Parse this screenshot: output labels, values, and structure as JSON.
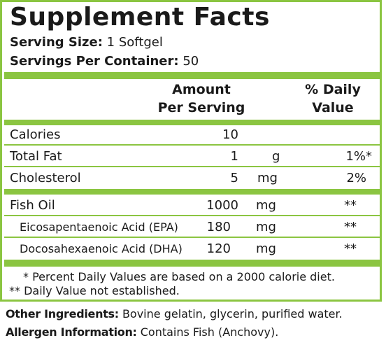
{
  "label": {
    "title": "Supplement Facts",
    "serving_size": {
      "label": "Serving Size:",
      "value": "1 Softgel"
    },
    "servings_per_container": {
      "label": "Servings Per Container:",
      "value": "50"
    },
    "header": {
      "amount_line1": "Amount",
      "amount_line2": "Per Serving",
      "daily_line1": "% Daily",
      "daily_line2": "Value"
    },
    "rows": [
      {
        "name": "Calories",
        "amount": "10",
        "unit": "",
        "dv": ""
      },
      {
        "name": "Total Fat",
        "amount": "1",
        "unit": "g",
        "dv": "1%*"
      },
      {
        "name": "Cholesterol",
        "amount": "5",
        "unit": "mg",
        "dv": "2%"
      },
      {
        "name": "Fish Oil",
        "amount": "1000",
        "unit": "mg",
        "dv": "**"
      },
      {
        "name": "Eicosapentaenoic Acid (EPA)",
        "amount": "180",
        "unit": "mg",
        "dv": "**"
      },
      {
        "name": "Docosahexaenoic Acid (DHA)",
        "amount": "120",
        "unit": "mg",
        "dv": "**"
      }
    ],
    "footnote1": "* Percent Daily Values are based on a 2000 calorie diet.",
    "footnote2": "** Daily Value not established."
  },
  "other_ingredients": {
    "label": "Other Ingredients:",
    "value": "Bovine gelatin, glycerin, purified water."
  },
  "allergen_information": {
    "label": "Allergen Information:",
    "value": "Contains Fish (Anchovy)."
  },
  "colors": {
    "accent": "#8bc541",
    "text": "#1a1a1a"
  }
}
